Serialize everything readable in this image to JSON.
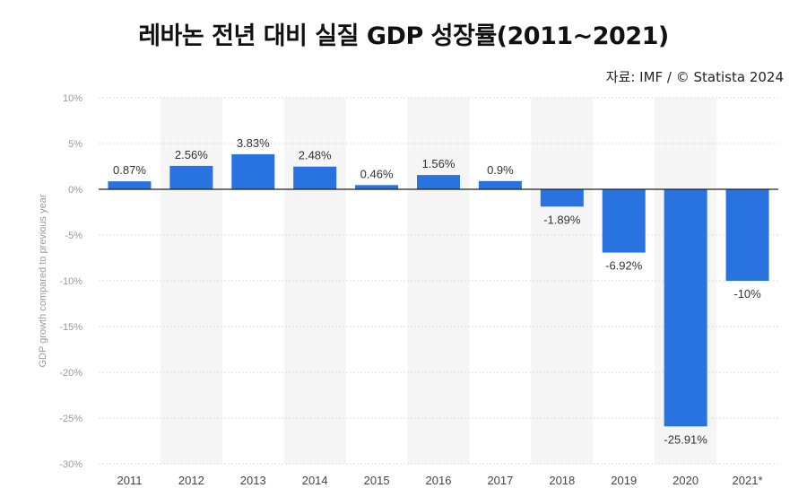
{
  "header": {
    "title": "레바논 전년 대비 실질 GDP 성장률(2011~2021)",
    "source": "자료: IMF / © Statista 2024"
  },
  "chart_data": {
    "type": "bar",
    "title": "레바논 전년 대비 실질 GDP 성장률(2011~2021)",
    "xlabel": "",
    "ylabel": "GDP growth compared to previous year",
    "categories": [
      "2011",
      "2012",
      "2013",
      "2014",
      "2015",
      "2016",
      "2017",
      "2018",
      "2019",
      "2020",
      "2021*"
    ],
    "values": [
      0.87,
      2.56,
      3.83,
      2.48,
      0.46,
      1.56,
      0.9,
      -1.89,
      -6.92,
      -25.91,
      -10
    ],
    "data_labels": [
      "0.87%",
      "2.56%",
      "3.83%",
      "2.48%",
      "0.46%",
      "1.56%",
      "0.9%",
      "-1.89%",
      "-6.92%",
      "-25.91%",
      "-10%"
    ],
    "ylim": [
      -30,
      10
    ],
    "yticks": [
      10,
      5,
      0,
      -5,
      -10,
      -15,
      -20,
      -25,
      -30
    ],
    "ytick_labels": [
      "10%",
      "5%",
      "0%",
      "-5%",
      "-10%",
      "-15%",
      "-20%",
      "-25%",
      "-30%"
    ],
    "grid": true,
    "legend": "none",
    "colors": {
      "bar": "#2873e0",
      "band": "#f5f5f5",
      "grid": "#dddddd",
      "zero_line": "#222222"
    }
  }
}
